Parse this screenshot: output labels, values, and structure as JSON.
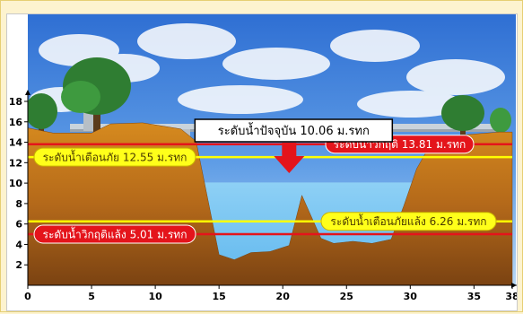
{
  "chart_data": {
    "type": "area",
    "x_ticks": [
      "0",
      "5",
      "10",
      "15",
      "20",
      "25",
      "30",
      "35",
      "38"
    ],
    "y_ticks": [
      "2",
      "4",
      "6",
      "8",
      "10",
      "12",
      "14",
      "16",
      "18"
    ],
    "xlim": [
      0,
      38
    ],
    "ylim": [
      0,
      19
    ],
    "water_level": {
      "label": "ระดับน้ำปัจจุบัน 10.06 ม.รทก",
      "value": 10.06,
      "x": 20.5
    },
    "thresholds": [
      {
        "label": "ระดับน้ำวิกฤติ 13.81 ม.รทก",
        "value": 13.81,
        "color": "#e4141b"
      },
      {
        "label": "ระดับน้ำเตือนภัย 12.55 ม.รทก",
        "value": 12.55,
        "color": "#ffff00"
      },
      {
        "label": "ระดับน้ำเตือนภัยแล้ง 6.26 ม.รทก",
        "value": 6.26,
        "color": "#ffff00"
      },
      {
        "label": "ระดับน้ำวิกฤติแล้ง 5.01 ม.รทก",
        "value": 5.01,
        "color": "#e4141b"
      }
    ],
    "cross_section": {
      "x": [
        0,
        2,
        5,
        6.5,
        9,
        12,
        13.2,
        15,
        16.2,
        17.5,
        19,
        20.5,
        21.5,
        23,
        24,
        25.5,
        27,
        28.5,
        29.5,
        30.5,
        31.5,
        33,
        35,
        37,
        38
      ],
      "y": [
        15.4,
        14.9,
        14.9,
        15.8,
        15.9,
        15.3,
        14.1,
        3,
        2.5,
        3.2,
        3.3,
        3.9,
        8.8,
        4.6,
        4.1,
        4.3,
        4.1,
        4.5,
        7.8,
        11.4,
        13.6,
        14.6,
        14.8,
        15,
        15
      ]
    }
  }
}
